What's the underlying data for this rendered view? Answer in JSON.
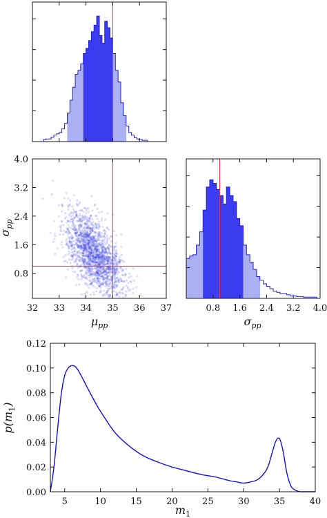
{
  "colors": {
    "hist_dark": "#3b3bf0",
    "hist_mid": "#5a5af5",
    "hist_light": "#aab0f2",
    "outline": "#1f1fd6",
    "truth": "#e8333a",
    "scatter": "#2b34e0",
    "curve": "#1010d0"
  },
  "chart_data": [
    {
      "id": "mu_pp_hist",
      "type": "bar",
      "xlim": [
        32,
        37
      ],
      "truth": 35.0,
      "bin_width": 0.1,
      "intervals": {
        "inner": [
          33.85,
          35.0
        ],
        "outer": [
          33.3,
          35.5
        ]
      },
      "x": [
        32.4,
        32.5,
        32.6,
        32.7,
        32.8,
        32.9,
        33.0,
        33.1,
        33.2,
        33.3,
        33.4,
        33.5,
        33.6,
        33.7,
        33.8,
        33.9,
        34.0,
        34.1,
        34.2,
        34.3,
        34.4,
        34.5,
        34.6,
        34.7,
        34.8,
        34.9,
        35.0,
        35.1,
        35.2,
        35.3,
        35.4,
        35.5,
        35.6,
        35.7,
        35.8,
        35.9,
        36.0,
        36.1,
        36.2
      ],
      "values": [
        0.015,
        0.02,
        0.02,
        0.035,
        0.05,
        0.06,
        0.07,
        0.1,
        0.14,
        0.22,
        0.32,
        0.42,
        0.52,
        0.55,
        0.6,
        0.68,
        0.72,
        0.78,
        0.85,
        0.9,
        0.97,
        0.82,
        0.76,
        0.93,
        0.88,
        0.8,
        0.68,
        0.55,
        0.46,
        0.3,
        0.2,
        0.12,
        0.07,
        0.05,
        0.03,
        0.02,
        0.015,
        0.01,
        0.01
      ]
    },
    {
      "id": "sigma_vs_mu_scatter",
      "type": "scatter",
      "xlabel": "μ_pp",
      "ylabel": "σ_pp",
      "xlim": [
        32,
        37
      ],
      "ylim": [
        0.1,
        4.0
      ],
      "xticks": [
        "32",
        "33",
        "34",
        "35",
        "36",
        "37"
      ],
      "yticks": [
        "0.8",
        "1.6",
        "2.4",
        "3.2",
        "4.0"
      ],
      "truth": {
        "x": 35.0,
        "y": 1.0
      },
      "distribution": {
        "mean_x": 34.3,
        "sd_x": 0.55,
        "mean_y": 1.35,
        "sd_y": 0.58,
        "corr": -0.6,
        "n": 1800
      }
    },
    {
      "id": "sigma_pp_hist",
      "type": "bar",
      "xlabel": "σ_pp",
      "xlim": [
        0.0,
        4.0
      ],
      "xticks": [
        "0.8",
        "1.6",
        "2.4",
        "3.2",
        "4.0"
      ],
      "truth": 1.0,
      "bin_width": 0.1,
      "intervals": {
        "inner": [
          0.5,
          1.7
        ],
        "outer": [
          0.0,
          2.15
        ]
      },
      "x": [
        0.0,
        0.1,
        0.2,
        0.3,
        0.4,
        0.5,
        0.6,
        0.7,
        0.8,
        0.9,
        1.0,
        1.1,
        1.2,
        1.3,
        1.4,
        1.5,
        1.6,
        1.7,
        1.8,
        1.9,
        2.0,
        2.1,
        2.2,
        2.3,
        2.4,
        2.5,
        2.6,
        2.7,
        2.8,
        2.9,
        3.0,
        3.1,
        3.2,
        3.3,
        3.4,
        3.5,
        3.6,
        3.7,
        3.8
      ],
      "values": [
        0.33,
        0.35,
        0.36,
        0.44,
        0.55,
        0.73,
        0.92,
        0.98,
        0.95,
        0.9,
        0.85,
        0.78,
        0.92,
        0.85,
        0.8,
        0.66,
        0.6,
        0.44,
        0.36,
        0.3,
        0.24,
        0.18,
        0.15,
        0.12,
        0.1,
        0.08,
        0.06,
        0.05,
        0.04,
        0.04,
        0.03,
        0.02,
        0.02,
        0.015,
        0.015,
        0.01,
        0.01,
        0.01,
        0.01
      ]
    },
    {
      "id": "p_m1_curve",
      "type": "line",
      "xlabel": "m_1",
      "ylabel": "p(m_1)",
      "xlim": [
        3,
        40
      ],
      "ylim": [
        0,
        0.12
      ],
      "xticks": [
        "5",
        "10",
        "15",
        "20",
        "25",
        "30",
        "35",
        "40"
      ],
      "yticks": [
        "0.00",
        "0.02",
        "0.04",
        "0.06",
        "0.08",
        "0.10",
        "0.12"
      ],
      "x": [
        3,
        3.5,
        4,
        4.5,
        5,
        5.5,
        6,
        6.5,
        7,
        8,
        9,
        10,
        12,
        14,
        16,
        18,
        20,
        22,
        24,
        26,
        28,
        29,
        30,
        31,
        32,
        33,
        33.5,
        34,
        34.5,
        35,
        35.5,
        36,
        36.5,
        37,
        38,
        40
      ],
      "y": [
        0.0,
        0.02,
        0.05,
        0.078,
        0.094,
        0.1,
        0.102,
        0.101,
        0.097,
        0.086,
        0.075,
        0.065,
        0.048,
        0.037,
        0.029,
        0.024,
        0.02,
        0.017,
        0.014,
        0.012,
        0.009,
        0.008,
        0.007,
        0.008,
        0.01,
        0.016,
        0.022,
        0.032,
        0.041,
        0.043,
        0.033,
        0.016,
        0.006,
        0.002,
        0.0,
        0.0
      ]
    }
  ],
  "labels": {
    "mu_x": "μ",
    "mu_sub": "pp",
    "sigma_y": "σ",
    "sigma_sub": "pp",
    "m_x": "m",
    "m_sub": "1",
    "p_y": "p(m",
    "p_sub": "1",
    "p_close": ")"
  }
}
